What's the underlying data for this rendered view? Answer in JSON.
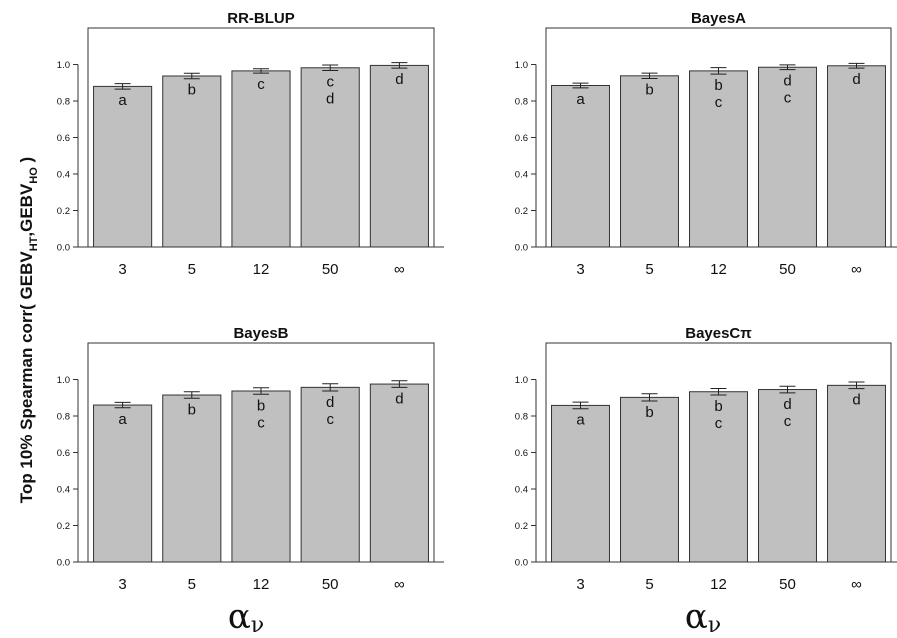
{
  "ylabel": {
    "prefix": "Top 10% Spearman corr( GEBV",
    "sub1": "HT",
    "mid": ",GEBV",
    "sub2": "HO",
    "suffix": " )"
  },
  "xlabel": {
    "main": "α",
    "sub": "ν"
  },
  "chart_data": [
    {
      "type": "bar",
      "title": "RR-BLUP",
      "categories": [
        "3",
        "5",
        "12",
        "50",
        "∞"
      ],
      "values": [
        0.88,
        0.937,
        0.965,
        0.982,
        0.995
      ],
      "errors": [
        0.015,
        0.015,
        0.012,
        0.015,
        0.015
      ],
      "letters": [
        [
          "a"
        ],
        [
          "b"
        ],
        [
          "c"
        ],
        [
          "c",
          "d"
        ],
        [
          "d"
        ]
      ],
      "ylim": [
        0,
        1.2
      ],
      "yticks": [
        "0.0",
        "0.2",
        "0.4",
        "0.6",
        "0.8",
        "1.0"
      ]
    },
    {
      "type": "bar",
      "title": "BayesA",
      "categories": [
        "3",
        "5",
        "12",
        "50",
        "∞"
      ],
      "values": [
        0.885,
        0.938,
        0.965,
        0.985,
        0.993
      ],
      "errors": [
        0.013,
        0.015,
        0.018,
        0.013,
        0.013
      ],
      "letters": [
        [
          "a"
        ],
        [
          "b"
        ],
        [
          "b",
          "c"
        ],
        [
          "d",
          "c"
        ],
        [
          "d"
        ]
      ],
      "ylim": [
        0,
        1.2
      ],
      "yticks": [
        "0.0",
        "0.2",
        "0.4",
        "0.6",
        "0.8",
        "1.0"
      ]
    },
    {
      "type": "bar",
      "title": "BayesB",
      "categories": [
        "3",
        "5",
        "12",
        "50",
        "∞"
      ],
      "values": [
        0.86,
        0.915,
        0.937,
        0.957,
        0.975
      ],
      "errors": [
        0.015,
        0.018,
        0.018,
        0.02,
        0.018
      ],
      "letters": [
        [
          "a"
        ],
        [
          "b"
        ],
        [
          "b",
          "c"
        ],
        [
          "d",
          "c"
        ],
        [
          "d"
        ]
      ],
      "ylim": [
        0,
        1.2
      ],
      "yticks": [
        "0.0",
        "0.2",
        "0.4",
        "0.6",
        "0.8",
        "1.0"
      ]
    },
    {
      "type": "bar",
      "title": "BayesCπ",
      "categories": [
        "3",
        "5",
        "12",
        "50",
        "∞"
      ],
      "values": [
        0.858,
        0.902,
        0.933,
        0.945,
        0.968
      ],
      "errors": [
        0.018,
        0.02,
        0.018,
        0.018,
        0.018
      ],
      "letters": [
        [
          "a"
        ],
        [
          "b"
        ],
        [
          "b",
          "c"
        ],
        [
          "d",
          "c"
        ],
        [
          "d"
        ]
      ],
      "ylim": [
        0,
        1.2
      ],
      "yticks": [
        "0.0",
        "0.2",
        "0.4",
        "0.6",
        "0.8",
        "1.0"
      ]
    }
  ]
}
